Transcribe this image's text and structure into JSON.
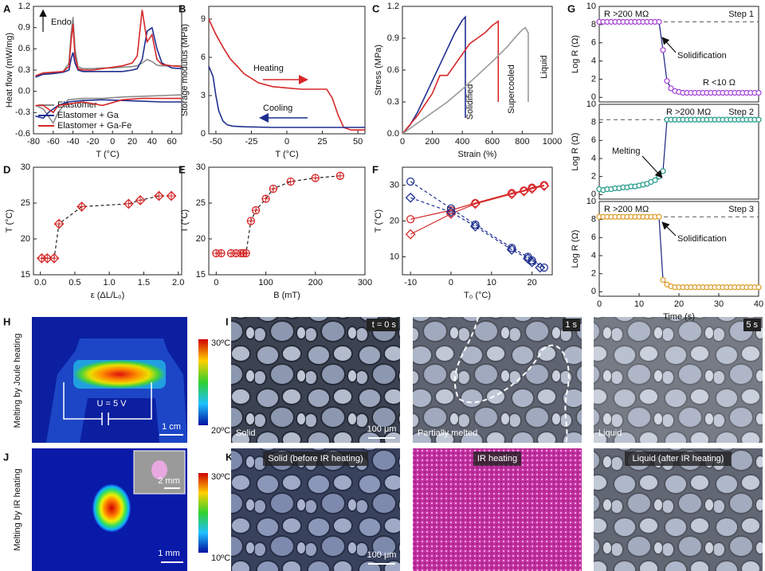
{
  "chart_data": [
    {
      "type": "line",
      "panel": "A",
      "xlabel": "T (°C)",
      "ylabel": "Heat flow (mW/mg)",
      "annotations": [
        "Endo"
      ],
      "legend": "lower left",
      "xlim": [
        -80,
        70
      ],
      "xticks": [
        -80,
        -60,
        -40,
        -20,
        0,
        20,
        40,
        60
      ],
      "ylim": [
        -0.6,
        1.2
      ],
      "yticks": [
        -0.6,
        -0.3,
        {
          "value": 0,
          "label": "0.0"
        },
        0.3,
        0.6,
        0.9,
        1.2
      ],
      "series": [
        {
          "name": "Elastomer",
          "color": "#8a8a8a",
          "x": [
            -78,
            -70,
            -60,
            -50,
            -44,
            -42,
            -40,
            -38,
            -35,
            -30,
            -20,
            -10,
            0,
            10,
            20,
            25,
            30,
            35,
            40,
            45,
            50,
            60,
            70,
            null,
            70,
            50,
            30,
            10,
            -10,
            -30,
            -45,
            -55,
            -60,
            -65,
            -70,
            -78
          ],
          "values": [
            0.2,
            0.25,
            0.26,
            0.28,
            0.4,
            0.8,
            1.05,
            0.6,
            0.35,
            0.32,
            0.32,
            0.33,
            0.33,
            0.34,
            0.35,
            0.36,
            0.4,
            0.45,
            0.42,
            0.37,
            0.36,
            0.36,
            0.36,
            null,
            -0.05,
            -0.06,
            -0.07,
            -0.08,
            -0.1,
            -0.1,
            -0.12,
            -0.3,
            -0.45,
            -0.35,
            -0.25,
            -0.2
          ]
        },
        {
          "name": "Elastomer + Ga",
          "color": "#1f2f8f",
          "x": [
            -78,
            -70,
            -60,
            -50,
            -44,
            -42,
            -40,
            -38,
            -35,
            -30,
            -20,
            -10,
            0,
            10,
            20,
            25,
            30,
            35,
            40,
            45,
            50,
            60,
            70,
            null,
            70,
            50,
            30,
            10,
            -10,
            -30,
            -45,
            -55,
            -60,
            -65,
            -70,
            -78
          ],
          "values": [
            0.2,
            0.24,
            0.25,
            0.27,
            0.3,
            0.45,
            0.55,
            0.4,
            0.3,
            0.28,
            0.28,
            0.28,
            0.28,
            0.28,
            0.3,
            0.32,
            0.45,
            0.85,
            0.9,
            0.6,
            0.4,
            0.33,
            0.32,
            null,
            -0.15,
            -0.15,
            -0.14,
            -0.13,
            -0.12,
            -0.13,
            -0.15,
            -0.2,
            -0.25,
            -0.3,
            -0.38,
            -0.35
          ]
        },
        {
          "name": "Elastomer + Ga-Fe",
          "color": "#d62728",
          "x": [
            -78,
            -70,
            -60,
            -50,
            -44,
            -42,
            -40,
            -38,
            -35,
            -30,
            -20,
            -10,
            0,
            10,
            20,
            25,
            30,
            35,
            40,
            45,
            50,
            60,
            70,
            null,
            70,
            50,
            30,
            10,
            -10,
            -30,
            -45,
            -55,
            -60,
            -65,
            -70,
            -78
          ],
          "values": [
            0.22,
            0.26,
            0.27,
            0.28,
            0.35,
            0.7,
            0.95,
            0.5,
            0.32,
            0.3,
            0.3,
            0.32,
            0.34,
            0.36,
            0.4,
            0.5,
            1.15,
            0.7,
            0.8,
            0.45,
            0.38,
            0.36,
            0.35,
            null,
            -0.1,
            -0.1,
            -0.1,
            -0.12,
            -0.2,
            -0.15,
            -0.18,
            -0.2,
            -0.3,
            -0.25,
            -0.2,
            -0.2
          ]
        }
      ]
    },
    {
      "type": "line",
      "panel": "B",
      "xlabel": "T (°C)",
      "ylabel": "Storage modulus (MPa)",
      "series_labels": "inline",
      "xlim": [
        -55,
        55
      ],
      "xticks": [
        -50,
        -25,
        0,
        25,
        50
      ],
      "ylim": [
        0,
        10
      ],
      "yticks": [
        0,
        3,
        6,
        9
      ],
      "series": [
        {
          "name": "Heating",
          "color": "#d62728",
          "x": [
            -55,
            -50,
            -45,
            -40,
            -30,
            -20,
            -10,
            0,
            10,
            20,
            28,
            32,
            36,
            40,
            45,
            55
          ],
          "values": [
            9,
            7.8,
            6.8,
            5.9,
            4.7,
            4,
            3.7,
            3.6,
            3.5,
            3.5,
            3.5,
            2.8,
            1.5,
            0.5,
            0.3,
            0.3
          ]
        },
        {
          "name": "Cooling",
          "color": "#1f2f8f",
          "x": [
            -55,
            -52,
            -50,
            -48,
            -45,
            -42,
            -38,
            -30,
            -10,
            10,
            30,
            55
          ],
          "values": [
            5.3,
            4.5,
            3,
            1.8,
            1,
            0.7,
            0.6,
            0.55,
            0.5,
            0.5,
            0.5,
            0.5
          ]
        }
      ]
    },
    {
      "type": "line",
      "panel": "C",
      "xlabel": "Strain (%)",
      "ylabel": "Stress (MPa)",
      "series_labels": "inline",
      "xlim": [
        0,
        1000
      ],
      "xticks": [
        0,
        200,
        400,
        600,
        800,
        1000
      ],
      "ylim": [
        0,
        1.2
      ],
      "yticks": [
        {
          "value": 0,
          "label": "0.0"
        },
        0.3,
        0.6,
        0.9,
        1.2
      ],
      "series": [
        {
          "name": "Solidified",
          "color": "#1f2f8f",
          "x": [
            0,
            50,
            100,
            150,
            200,
            250,
            300,
            350,
            400,
            420,
            420
          ],
          "values": [
            0,
            0.08,
            0.2,
            0.35,
            0.5,
            0.65,
            0.8,
            0.95,
            1.07,
            1.1,
            0.15
          ]
        },
        {
          "name": "Supercooled",
          "color": "#d62728",
          "x": [
            0,
            100,
            200,
            250,
            300,
            400,
            450,
            500,
            550,
            600,
            640,
            640
          ],
          "values": [
            0,
            0.17,
            0.38,
            0.55,
            0.55,
            0.75,
            0.85,
            0.9,
            0.95,
            1.02,
            1.06,
            0.3
          ]
        },
        {
          "name": "Liquid",
          "color": "#9a9a9a",
          "x": [
            0,
            100,
            200,
            300,
            400,
            500,
            600,
            700,
            760,
            800,
            820,
            840,
            840
          ],
          "values": [
            0,
            0.1,
            0.2,
            0.3,
            0.42,
            0.55,
            0.68,
            0.82,
            0.92,
            0.98,
            1.0,
            0.95,
            0.3
          ]
        }
      ]
    },
    {
      "type": "line",
      "panel": "D",
      "xlabel": "ε (ΔL/L₀)",
      "ylabel": "T (°C)",
      "xlim": [
        -0.1,
        2.05
      ],
      "xticks": [
        {
          "value": 0,
          "label": "0.0"
        },
        0.5,
        {
          "value": 1,
          "label": "1.0"
        },
        1.5,
        {
          "value": 2,
          "label": "2.0"
        }
      ],
      "ylim": [
        15,
        30
      ],
      "yticks": [
        15,
        20,
        25,
        30
      ],
      "series": [
        {
          "color": "#d62728",
          "line_color": "#222222",
          "line": "dashed",
          "marker": "diamond",
          "x": [
            0.02,
            0.1,
            0.2,
            0.27,
            0.6,
            1.28,
            1.45,
            1.72,
            1.9
          ],
          "values": [
            17.3,
            17.3,
            17.3,
            22.1,
            24.5,
            24.9,
            25.4,
            26.0,
            26.0
          ]
        }
      ]
    },
    {
      "type": "line",
      "panel": "E",
      "xlabel": "B (mT)",
      "ylabel": "T (°C)",
      "xlim": [
        -15,
        300
      ],
      "xticks": [
        0,
        100,
        200,
        300
      ],
      "ylim": [
        15,
        30
      ],
      "yticks": [
        15,
        20,
        25,
        30
      ],
      "series": [
        {
          "color": "#d62728",
          "line_color": "#222222",
          "line": "dashed",
          "marker": "circle",
          "x": [
            0,
            10,
            30,
            40,
            50,
            55,
            60,
            70,
            80,
            100,
            115,
            150,
            200,
            250
          ],
          "values": [
            18,
            18,
            18,
            18,
            18,
            18,
            18,
            22.5,
            24,
            25.6,
            27,
            28,
            28.5,
            28.8
          ]
        }
      ]
    },
    {
      "type": "line",
      "panel": "F",
      "xlabel": "T₀ (°C)",
      "ylabel": "T (°C)",
      "xlim": [
        -12,
        25
      ],
      "xticks": [
        -10,
        0,
        10,
        20
      ],
      "ylim": [
        5,
        35
      ],
      "yticks": [
        10,
        20,
        30
      ],
      "series": [
        {
          "color": "#d62728",
          "marker": "circle",
          "x": [
            -10,
            0,
            6,
            15,
            18,
            20,
            23
          ],
          "values": [
            20.5,
            23,
            25,
            27.8,
            28.5,
            29.3,
            30
          ]
        },
        {
          "color": "#d62728",
          "marker": "diamond",
          "x": [
            -10,
            0,
            6,
            15,
            18,
            20,
            23
          ],
          "values": [
            16.3,
            22,
            24.8,
            27.5,
            28.3,
            29,
            29.8
          ]
        },
        {
          "color": "#1f2f8f",
          "marker": "circle",
          "line": "dashed",
          "x": [
            -10,
            0,
            6,
            15,
            19,
            20,
            23
          ],
          "values": [
            31,
            23.5,
            19,
            12.5,
            10,
            9,
            7
          ]
        },
        {
          "color": "#1f2f8f",
          "marker": "diamond",
          "line": "dashed",
          "x": [
            -10,
            0,
            6,
            15,
            19,
            20,
            22
          ],
          "values": [
            26.5,
            22.5,
            18.5,
            12,
            9.5,
            8.5,
            7
          ]
        }
      ]
    },
    {
      "type": "line",
      "panel": "G",
      "ylabel": "Log R (Ω)",
      "annotations": [
        "R >200 MΩ",
        "Step 1",
        "Solidification",
        "R <10 Ω"
      ],
      "reference_line": 8.3,
      "xlim": [
        0,
        40
      ],
      "ylim": [
        -0.5,
        10
      ],
      "yticks": [
        0,
        2,
        4,
        6,
        8,
        10
      ],
      "series": [
        {
          "color": "#a64ad6",
          "line_color": "#1a237e",
          "marker": "circle",
          "x": [
            0,
            1,
            2,
            3,
            4,
            5,
            6,
            7,
            8,
            9,
            10,
            11,
            12,
            13,
            14,
            15,
            16,
            17,
            18,
            19,
            20,
            21,
            22,
            23,
            24,
            25,
            26,
            27,
            28,
            29,
            30,
            31,
            32,
            33,
            34,
            35,
            36,
            37,
            38,
            39,
            40
          ],
          "values": [
            8.3,
            8.3,
            8.3,
            8.3,
            8.3,
            8.3,
            8.3,
            8.3,
            8.3,
            8.3,
            8.3,
            8.3,
            8.3,
            8.3,
            8.3,
            8.3,
            5.2,
            1.8,
            1.0,
            0.7,
            0.6,
            0.5,
            0.5,
            0.5,
            0.5,
            0.5,
            0.5,
            0.5,
            0.5,
            0.5,
            0.5,
            0.5,
            0.5,
            0.5,
            0.5,
            0.5,
            0.5,
            0.5,
            0.5,
            0.5,
            0.5
          ]
        }
      ]
    },
    {
      "type": "line",
      "ylabel": "Log R (Ω)",
      "annotations": [
        "R >200 MΩ",
        "Step 2",
        "Melting"
      ],
      "reference_line": 8.3,
      "xlim": [
        0,
        40
      ],
      "ylim": [
        -0.5,
        10
      ],
      "yticks": [
        0,
        2,
        4,
        6,
        8,
        10
      ],
      "series": [
        {
          "color": "#2a9d8f",
          "line_color": "#1a237e",
          "marker": "circle",
          "x": [
            0,
            1,
            2,
            3,
            4,
            5,
            6,
            7,
            8,
            9,
            10,
            11,
            12,
            13,
            14,
            15,
            16,
            17,
            18,
            19,
            20,
            21,
            22,
            23,
            24,
            25,
            26,
            27,
            28,
            29,
            30,
            31,
            32,
            33,
            34,
            35,
            36,
            37,
            38,
            39,
            40
          ],
          "values": [
            0.6,
            0.5,
            0.6,
            0.6,
            0.7,
            0.7,
            0.8,
            0.8,
            0.9,
            0.9,
            1.0,
            1.1,
            1.2,
            1.4,
            1.6,
            2.0,
            2.6,
            8.3,
            8.3,
            8.3,
            8.3,
            8.3,
            8.3,
            8.3,
            8.3,
            8.3,
            8.3,
            8.3,
            8.3,
            8.3,
            8.3,
            8.3,
            8.3,
            8.3,
            8.3,
            8.3,
            8.3,
            8.3,
            8.3,
            8.3,
            8.3
          ]
        }
      ]
    },
    {
      "type": "line",
      "xlabel": "Time (s)",
      "ylabel": "Log R (Ω)",
      "annotations": [
        "R >200 MΩ",
        "Step 3",
        "Solidification"
      ],
      "reference_line": 8.3,
      "xlim": [
        0,
        40
      ],
      "xticks": [
        0,
        10,
        20,
        30,
        40
      ],
      "ylim": [
        -0.5,
        10
      ],
      "yticks": [
        0,
        2,
        4,
        6,
        8,
        10
      ],
      "series": [
        {
          "color": "#e0a030",
          "line_color": "#1a237e",
          "marker": "circle",
          "x": [
            0,
            1,
            2,
            3,
            4,
            5,
            6,
            7,
            8,
            9,
            10,
            11,
            12,
            13,
            14,
            15,
            16,
            17,
            18,
            19,
            20,
            21,
            22,
            23,
            24,
            25,
            26,
            27,
            28,
            29,
            30,
            31,
            32,
            33,
            34,
            35,
            36,
            37,
            38,
            39,
            40
          ],
          "values": [
            8.3,
            8.3,
            8.3,
            8.3,
            8.3,
            8.3,
            8.3,
            8.3,
            8.3,
            8.3,
            8.3,
            8.3,
            8.3,
            8.3,
            8.3,
            8.3,
            1.3,
            0.8,
            0.6,
            0.5,
            0.5,
            0.5,
            0.5,
            0.5,
            0.5,
            0.5,
            0.5,
            0.5,
            0.5,
            0.5,
            0.5,
            0.5,
            0.5,
            0.5,
            0.5,
            0.5,
            0.5,
            0.5,
            0.5,
            0.5,
            0.5
          ]
        }
      ]
    }
  ],
  "image_panels": {
    "H": {
      "panel": "H",
      "side_label": "Melting by Joule heating",
      "scale_max": "30ºC",
      "scale_min": "20ºC",
      "voltage": "U = 5 V",
      "scale_bar": "1 cm"
    },
    "I": {
      "panel": "I",
      "frames": [
        {
          "time": "t = 0 s",
          "state": "Solid"
        },
        {
          "time": "1 s",
          "state": "Partially melted"
        },
        {
          "time": "5 s",
          "state": "Liquid"
        }
      ],
      "scale_bar": "100 μm"
    },
    "J": {
      "panel": "J",
      "side_label": "Melting by IR heating",
      "scale_max": "30ºC",
      "scale_min": "10ºC",
      "inset_scale_bar": "2 mm",
      "scale_bar": "1 mm"
    },
    "K": {
      "panel": "K",
      "frames": [
        "Solid (before IR heating)",
        "IR heating",
        "Liquid (after IR heating)"
      ],
      "scale_bar": "100 μm"
    }
  }
}
